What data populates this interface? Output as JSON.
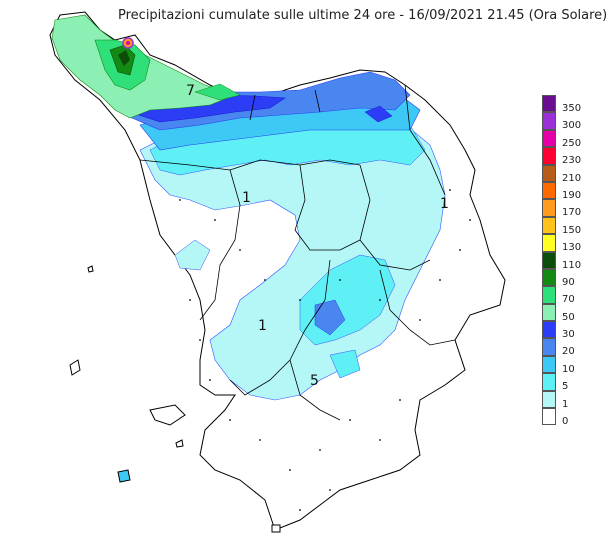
{
  "title": "Precipitazioni cumulate sulle ultime 24 ore - 16/09/2021 21.45 (Ora Solare)",
  "legend": {
    "items": [
      {
        "label": "350",
        "color": "#6a0d91"
      },
      {
        "label": "300",
        "color": "#9b30d9"
      },
      {
        "label": "250",
        "color": "#e600a8"
      },
      {
        "label": "230",
        "color": "#ff0033"
      },
      {
        "label": "210",
        "color": "#b85c1a"
      },
      {
        "label": "190",
        "color": "#ff6a00"
      },
      {
        "label": "170",
        "color": "#ff9a1f"
      },
      {
        "label": "150",
        "color": "#ffc21a"
      },
      {
        "label": "130",
        "color": "#ffff22"
      },
      {
        "label": "110",
        "color": "#0b4d0b"
      },
      {
        "label": "90",
        "color": "#138a13"
      },
      {
        "label": "70",
        "color": "#2fe07a"
      },
      {
        "label": "50",
        "color": "#8cf0b4"
      },
      {
        "label": "30",
        "color": "#2b3df5"
      },
      {
        "label": "20",
        "color": "#4a86f0"
      },
      {
        "label": "10",
        "color": "#3dc8f5"
      },
      {
        "label": "5",
        "color": "#5ff0f5"
      },
      {
        "label": "1",
        "color": "#b5f7f7"
      },
      {
        "label": "0",
        "color": "#ffffff"
      }
    ]
  },
  "map_labels": [
    "7",
    "1",
    "1",
    "1",
    "5"
  ]
}
